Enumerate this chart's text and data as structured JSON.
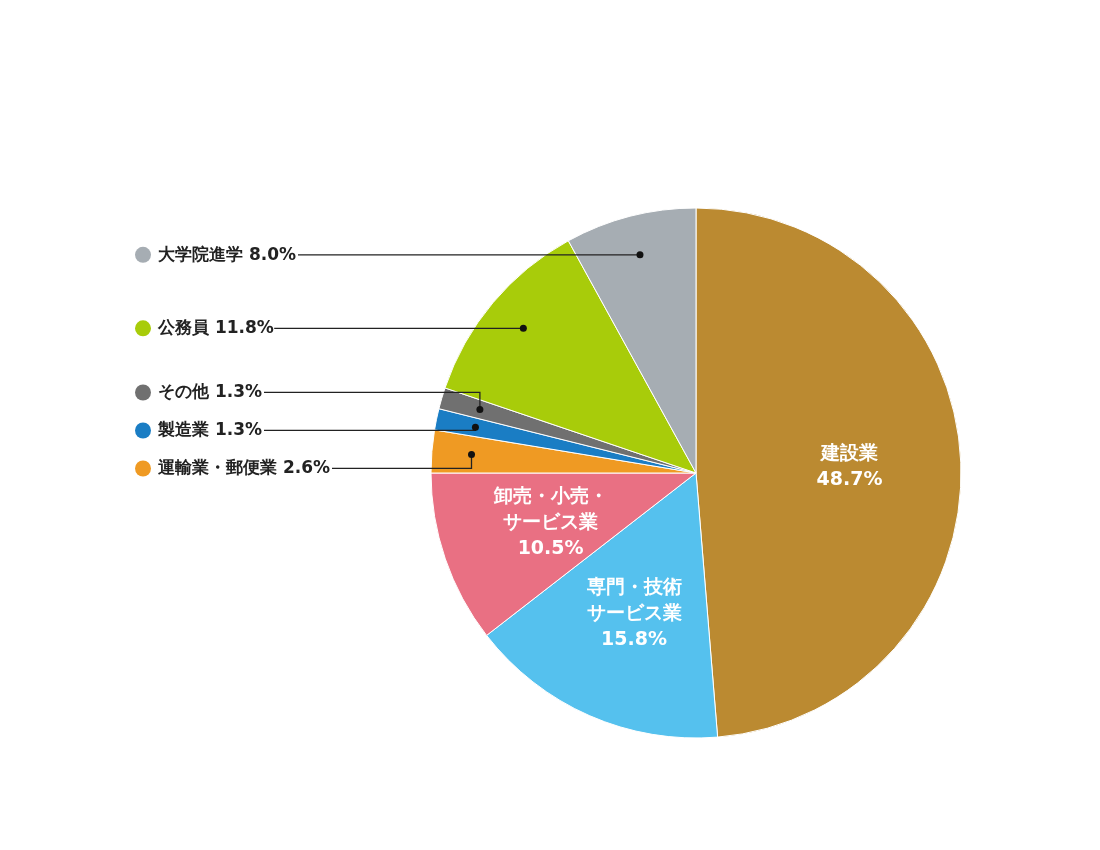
{
  "chart_data": {
    "type": "pie",
    "categories": [
      "建設業",
      "専門・技術サービス業",
      "卸売・小売・サービス業",
      "運輸業・郵便業",
      "製造業",
      "その他",
      "公務員",
      "大学院進学"
    ],
    "values": [
      48.7,
      15.8,
      10.5,
      2.6,
      1.3,
      1.3,
      11.8,
      8.0
    ],
    "value_labels": [
      "48.7%",
      "15.8%",
      "10.5%",
      "2.6%",
      "1.3%",
      "1.3%",
      "11.8%",
      "8.0%"
    ],
    "legend": "left",
    "colors": [
      "#bb8a31",
      "#55c1ee",
      "#e97083",
      "#ef9a23",
      "#1a7dc4",
      "#707070",
      "#a8cc0a",
      "#a6adb3"
    ]
  }
}
